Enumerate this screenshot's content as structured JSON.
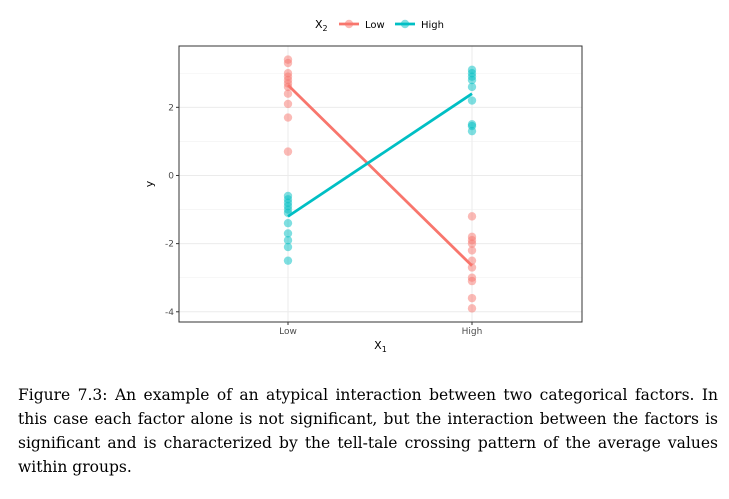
{
  "chart_data": {
    "type": "scatter",
    "title": "",
    "xlabel": "X",
    "xlabel_sub": "1",
    "ylabel": "y",
    "categories": [
      "Low",
      "High"
    ],
    "yticks": [
      -4,
      -2,
      0,
      2
    ],
    "ylim": [
      -4.3,
      3.8
    ],
    "grid": true,
    "legend": {
      "position": "top",
      "title": "X",
      "title_sub": "2",
      "entries": [
        "Low",
        "High"
      ]
    },
    "series": [
      {
        "name": "Low",
        "color": "#F8766D",
        "points": {
          "Low": [
            3.4,
            3.3,
            3.0,
            2.9,
            2.8,
            2.7,
            2.6,
            2.4,
            2.1,
            1.7,
            0.7
          ],
          "High": [
            -1.2,
            -1.8,
            -1.9,
            -2.0,
            -2.2,
            -2.5,
            -2.7,
            -3.0,
            -3.1,
            -3.6,
            -3.9
          ]
        },
        "means": [
          2.65,
          -2.65
        ]
      },
      {
        "name": "High",
        "color": "#00BFC4",
        "points": {
          "Low": [
            -0.6,
            -0.7,
            -0.8,
            -0.9,
            -1.0,
            -1.1,
            -1.4,
            -1.7,
            -1.9,
            -2.1,
            -2.5
          ],
          "High": [
            3.1,
            3.0,
            2.9,
            2.8,
            2.6,
            2.2,
            1.5,
            1.45,
            1.3
          ]
        },
        "means": [
          -1.2,
          2.4
        ]
      }
    ]
  },
  "caption": "Figure 7.3: An example of an atypical interaction between two categorical factors. In this case each factor alone is not significant, but the interaction between the factors is significant and is characterized by the tell-tale crossing pattern of the average values within groups."
}
